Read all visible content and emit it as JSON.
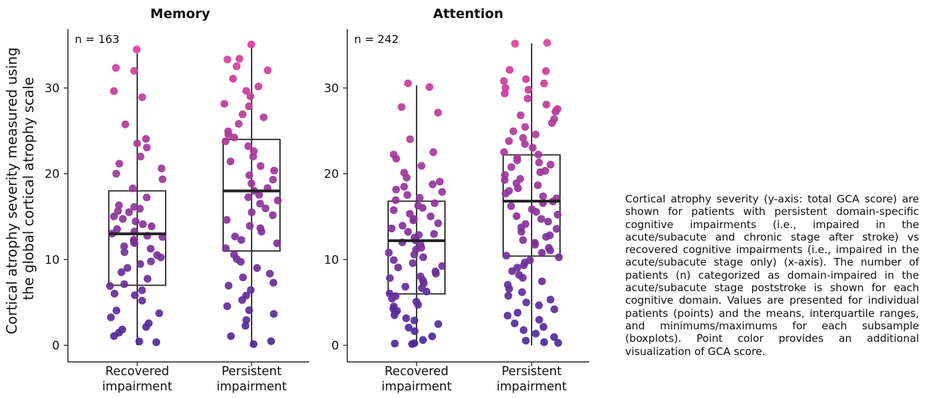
{
  "caption": "Cortical atrophy severity (y-axis: total GCA score) are shown for patients with persistent domain-specific cognitive impairments (i.e., impaired in the acute/subacute and chronic stage after stroke) vs recovered cognitive impairments (i.e., impaired in the acute/subacute stage only) (x-axis). The number of patients (n) categorized as domain-impaired in the acute/subacute stage poststroke is shown for each cognitive domain. Values are presented for individual patients (points) and the means, interquartile ranges, and minimums/maximums for each subsample (boxplots). Point color provides an additional visualization of GCA score.",
  "colors": {
    "low": "#4a2a9a",
    "high": "#e0409a",
    "box": "#3a3a3a",
    "axis": "#222222"
  },
  "chart_data": [
    {
      "type": "box",
      "title": "Memory",
      "n_label": "n = 163",
      "ylabel": "Cortical atrophy severity measured using the global cortical atrophy scale",
      "ylim": [
        0,
        36
      ],
      "yticks": [
        0,
        10,
        20,
        30
      ],
      "categories": [
        "Recovered\nimpairment",
        "Persistent\nimpairment"
      ],
      "boxes": [
        {
          "whisker_low": 0,
          "q1": 7,
          "median": 13,
          "q3": 18,
          "whisker_high": 34
        },
        {
          "whisker_low": 0,
          "q1": 11,
          "median": 18,
          "q3": 24,
          "whisker_high": 35
        }
      ],
      "points": [
        [
          34.5,
          32.3,
          32.0,
          29.7,
          28.9,
          25.8,
          24.0,
          23.5,
          23.0,
          22.0,
          21.1,
          20.7,
          20.0,
          19.3,
          18.3,
          17.2,
          16.4,
          16.1,
          15.9,
          15.7,
          15.5,
          15.1,
          14.8,
          14.4,
          14.1,
          13.9,
          13.5,
          13.2,
          13.0,
          12.8,
          12.6,
          12.3,
          12.1,
          11.9,
          11.5,
          11.2,
          10.9,
          10.6,
          10.3,
          9.8,
          9.4,
          9.0,
          8.5,
          7.8,
          7.2,
          6.9,
          6.4,
          6.1,
          5.9,
          5.2,
          4.1,
          3.7,
          3.2,
          2.6,
          2.2,
          1.9,
          1.4,
          1.0,
          0.5,
          0.3
        ],
        [
          35.0,
          33.4,
          33.3,
          32.5,
          32.0,
          31.0,
          30.1,
          29.6,
          29.0,
          28.2,
          27.9,
          27.0,
          26.6,
          25.8,
          25.0,
          24.5,
          24.2,
          23.8,
          23.2,
          22.7,
          22.0,
          21.5,
          20.9,
          20.4,
          19.9,
          19.3,
          18.9,
          18.4,
          18.1,
          17.6,
          17.2,
          16.9,
          16.5,
          16.0,
          15.5,
          15.2,
          14.6,
          14.0,
          13.6,
          13.2,
          12.7,
          12.2,
          11.9,
          11.3,
          10.6,
          10.1,
          9.8,
          9.0,
          8.3,
          7.9,
          7.3,
          6.9,
          6.4,
          5.8,
          5.2,
          4.6,
          4.1,
          3.6,
          2.9,
          2.2,
          1.1,
          0.4,
          0.1
        ]
      ]
    },
    {
      "type": "box",
      "title": "Attention",
      "n_label": "n = 242",
      "ylim": [
        0,
        36
      ],
      "yticks": [
        0,
        10,
        20,
        30
      ],
      "categories": [
        "Recovered\nimpairment",
        "Persistent\nimpairment"
      ],
      "boxes": [
        {
          "whisker_low": 0,
          "q1": 6,
          "median": 12.2,
          "q3": 16.8,
          "whisker_high": 30.3
        },
        {
          "whisker_low": 0,
          "q1": 10.4,
          "median": 16.8,
          "q3": 22.2,
          "whisker_high": 35.2
        }
      ],
      "points": [
        [
          30.5,
          30.1,
          27.8,
          27.2,
          24.1,
          22.5,
          22.2,
          21.8,
          21.0,
          20.1,
          19.5,
          19.1,
          18.8,
          18.5,
          18.2,
          17.9,
          17.5,
          17.2,
          16.9,
          16.6,
          16.3,
          16.0,
          15.7,
          15.4,
          15.1,
          14.8,
          14.5,
          14.2,
          13.9,
          13.6,
          13.3,
          13.0,
          12.8,
          12.5,
          12.2,
          12.0,
          11.7,
          11.4,
          11.1,
          10.8,
          10.5,
          10.2,
          9.9,
          9.6,
          9.3,
          9.0,
          8.7,
          8.4,
          8.1,
          7.8,
          7.5,
          7.2,
          6.9,
          6.6,
          6.3,
          6.0,
          5.7,
          5.4,
          5.1,
          4.8,
          4.5,
          4.2,
          4.0,
          3.8,
          3.5,
          3.2,
          2.9,
          2.5,
          2.1,
          1.6,
          1.0,
          0.6,
          0.3,
          0.2,
          0.1
        ],
        [
          35.3,
          35.2,
          32.1,
          31.9,
          31.0,
          30.8,
          30.5,
          30.0,
          29.8,
          29.4,
          28.8,
          28.0,
          27.6,
          27.2,
          26.8,
          26.4,
          25.9,
          25.5,
          25.0,
          24.6,
          24.2,
          23.8,
          23.4,
          23.0,
          22.6,
          22.2,
          21.9,
          21.6,
          21.3,
          21.0,
          20.7,
          20.4,
          20.1,
          19.8,
          19.5,
          19.2,
          18.9,
          18.6,
          18.3,
          18.0,
          17.7,
          17.4,
          17.1,
          16.8,
          16.5,
          16.2,
          15.9,
          15.6,
          15.3,
          15.0,
          14.7,
          14.4,
          14.1,
          13.8,
          13.5,
          13.2,
          12.9,
          12.6,
          12.3,
          12.0,
          11.7,
          11.4,
          11.1,
          10.8,
          10.5,
          10.2,
          9.9,
          9.6,
          9.3,
          9.0,
          8.6,
          8.2,
          7.8,
          7.4,
          7.0,
          6.6,
          6.2,
          5.8,
          5.4,
          5.0,
          4.6,
          4.2,
          3.8,
          3.4,
          3.0,
          2.6,
          2.2,
          1.8,
          1.4,
          1.0,
          0.6,
          0.4,
          0.2
        ]
      ]
    }
  ]
}
